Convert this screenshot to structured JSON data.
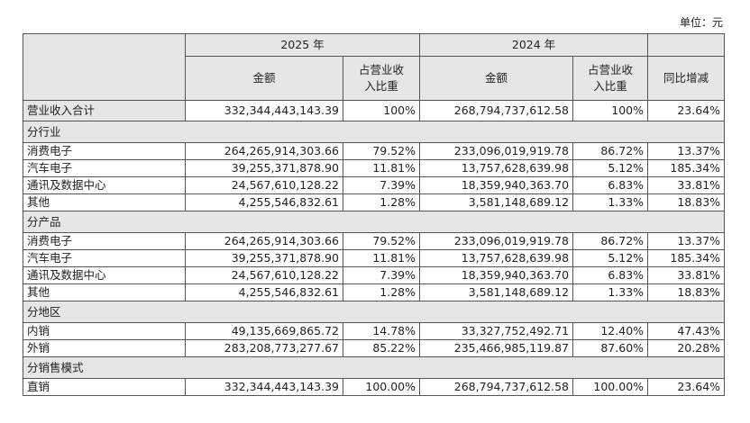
{
  "unit": "单位：元",
  "header": {
    "years": [
      "2025 年",
      "2024 年"
    ],
    "columns": [
      "金额",
      "占营业收入比重",
      "金额",
      "占营业收入比重",
      "同比增减"
    ]
  },
  "total": {
    "label": "营业收入合计",
    "cells": [
      "332,344,443,143.39",
      "100%",
      "268,794,737,612.58",
      "100%",
      "23.64%"
    ]
  },
  "sections": [
    {
      "title": "分行业",
      "rows": [
        {
          "label": "消费电子",
          "cells": [
            "264,265,914,303.66",
            "79.52%",
            "233,096,019,919.78",
            "86.72%",
            "13.37%"
          ]
        },
        {
          "label": "汽车电子",
          "cells": [
            "39,255,371,878.90",
            "11.81%",
            "13,757,628,639.98",
            "5.12%",
            "185.34%"
          ]
        },
        {
          "label": "通讯及数据中心",
          "cells": [
            "24,567,610,128.22",
            "7.39%",
            "18,359,940,363.70",
            "6.83%",
            "33.81%"
          ]
        },
        {
          "label": "其他",
          "cells": [
            "4,255,546,832.61",
            "1.28%",
            "3,581,148,689.12",
            "1.33%",
            "18.83%"
          ]
        }
      ]
    },
    {
      "title": "分产品",
      "rows": [
        {
          "label": "消费电子",
          "cells": [
            "264,265,914,303.66",
            "79.52%",
            "233,096,019,919.78",
            "86.72%",
            "13.37%"
          ]
        },
        {
          "label": "汽车电子",
          "cells": [
            "39,255,371,878.90",
            "11.81%",
            "13,757,628,639.98",
            "5.12%",
            "185.34%"
          ]
        },
        {
          "label": "通讯及数据中心",
          "cells": [
            "24,567,610,128.22",
            "7.39%",
            "18,359,940,363.70",
            "6.83%",
            "33.81%"
          ]
        },
        {
          "label": "其他",
          "cells": [
            "4,255,546,832.61",
            "1.28%",
            "3,581,148,689.12",
            "1.33%",
            "18.83%"
          ]
        }
      ]
    },
    {
      "title": "分地区",
      "rows": [
        {
          "label": "内销",
          "cells": [
            "49,135,669,865.72",
            "14.78%",
            "33,327,752,492.71",
            "12.40%",
            "47.43%"
          ]
        },
        {
          "label": "外销",
          "cells": [
            "283,208,773,277.67",
            "85.22%",
            "235,466,985,119.87",
            "87.60%",
            "20.28%"
          ]
        }
      ]
    },
    {
      "title": "分销售模式",
      "rows": [
        {
          "label": "直销",
          "cells": [
            "332,344,443,143.39",
            "100.00%",
            "268,794,737,612.58",
            "100.00%",
            "23.64%"
          ]
        }
      ]
    }
  ]
}
